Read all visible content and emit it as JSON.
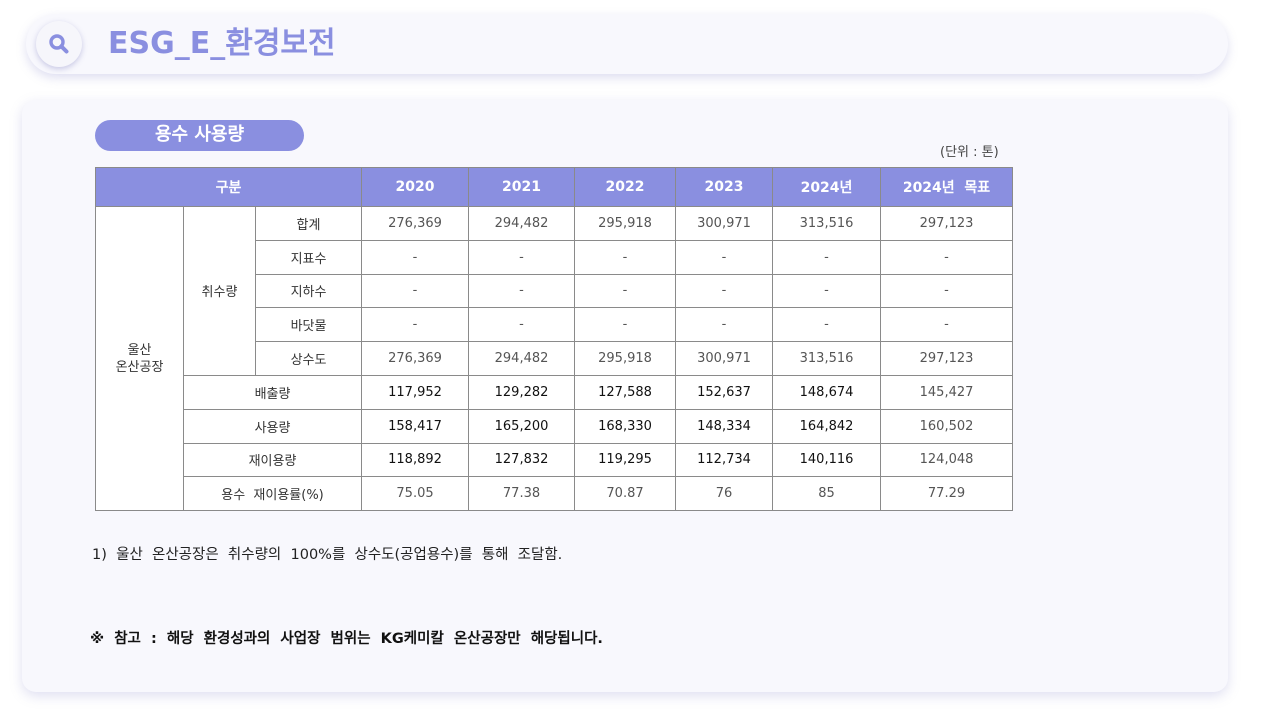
{
  "header": {
    "title": "ESG_E_환경보전",
    "icon": "search-icon"
  },
  "section": {
    "title": "용수 사용량",
    "unit": "(단위 : 톤)"
  },
  "table": {
    "header": {
      "category": "구분",
      "years": [
        "2020",
        "2021",
        "2022",
        "2023",
        "2024년",
        "2024년  목표"
      ]
    },
    "site": "울산\n온산공장",
    "intake_group": "취수량",
    "intake_rows": [
      {
        "label": "합계",
        "values": [
          "276,369",
          "294,482",
          "295,918",
          "300,971",
          "313,516",
          "297,123"
        ]
      },
      {
        "label": "지표수",
        "values": [
          "-",
          "-",
          "-",
          "-",
          "-",
          "-"
        ]
      },
      {
        "label": "지하수",
        "values": [
          "-",
          "-",
          "-",
          "-",
          "-",
          "-"
        ]
      },
      {
        "label": "바닷물",
        "values": [
          "-",
          "-",
          "-",
          "-",
          "-",
          "-"
        ]
      },
      {
        "label": "상수도",
        "values": [
          "276,369",
          "294,482",
          "295,918",
          "300,971",
          "313,516",
          "297,123"
        ]
      }
    ],
    "other_rows": [
      {
        "label": "배출량",
        "values": [
          "117,952",
          "129,282",
          "127,588",
          "152,637",
          "148,674",
          "145,427"
        ]
      },
      {
        "label": "사용량",
        "values": [
          "158,417",
          "165,200",
          "168,330",
          "148,334",
          "164,842",
          "160,502"
        ]
      },
      {
        "label": "재이용량",
        "values": [
          "118,892",
          "127,832",
          "119,295",
          "112,734",
          "140,116",
          "124,048"
        ]
      },
      {
        "label": "용수  재이용률(%)",
        "values": [
          "75.05",
          "77.38",
          "70.87",
          "76",
          "85",
          "77.29"
        ]
      }
    ]
  },
  "footnote": "1)  울산  온산공장은  취수량의  100%를  상수도(공업용수)를  통해  조달함.",
  "reference": "※  참고  :  해당  환경성과의  사업장  범위는  KG케미칼  온산공장만  해당됩니다.",
  "colors": {
    "accent": "#8a8fe0",
    "background": "#f8f8fd"
  }
}
